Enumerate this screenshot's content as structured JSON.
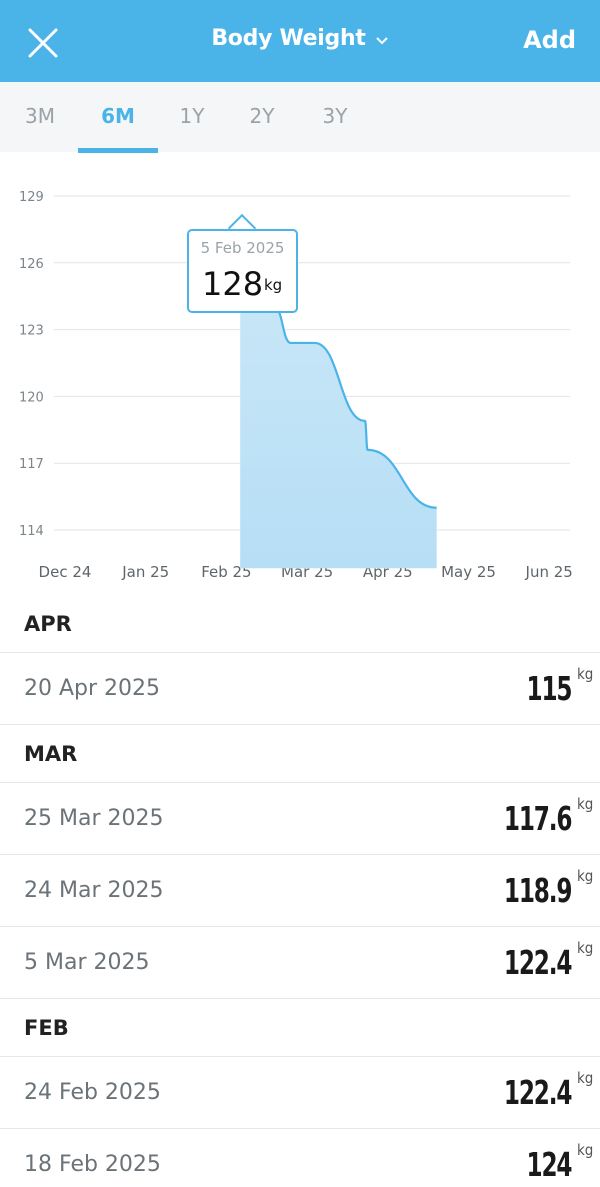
{
  "header": {
    "title": "Body Weight",
    "add_label": "Add",
    "background": "#4ab4e8"
  },
  "tabs": [
    {
      "label": "3M",
      "active": false
    },
    {
      "label": "6M",
      "active": true
    },
    {
      "label": "1Y",
      "active": false
    },
    {
      "label": "2Y",
      "active": false
    },
    {
      "label": "3Y",
      "active": false
    }
  ],
  "tooltip": {
    "date": "5 Feb 2025",
    "value": "128",
    "unit": "kg"
  },
  "chart_data": {
    "type": "area",
    "x_ticks": [
      "Dec 24",
      "Jan 25",
      "Feb 25",
      "Mar 25",
      "Apr 25",
      "May 25",
      "Jun 25"
    ],
    "y_ticks": [
      "129",
      "126",
      "123",
      "120",
      "117",
      "114"
    ],
    "ylim": [
      113,
      129
    ],
    "grid": true,
    "color": "#4ab4e8",
    "series": [
      {
        "points": [
          {
            "x": "2025-02-05",
            "y": 128
          },
          {
            "x": "2025-02-06",
            "y": 127.4
          },
          {
            "x": "2025-02-09",
            "y": 125.5
          },
          {
            "x": "2025-02-18",
            "y": 124
          },
          {
            "x": "2025-02-24",
            "y": 122.4
          },
          {
            "x": "2025-03-05",
            "y": 122.4
          },
          {
            "x": "2025-03-24",
            "y": 118.9
          },
          {
            "x": "2025-03-25",
            "y": 117.6
          },
          {
            "x": "2025-04-20",
            "y": 115
          }
        ]
      }
    ]
  },
  "list": [
    {
      "month": "APR",
      "entries": [
        {
          "date": "20 Apr 2025",
          "value": "115",
          "unit": "kg"
        }
      ]
    },
    {
      "month": "MAR",
      "entries": [
        {
          "date": "25 Mar 2025",
          "value": "117.6",
          "unit": "kg"
        },
        {
          "date": "24 Mar 2025",
          "value": "118.9",
          "unit": "kg"
        },
        {
          "date": "5 Mar 2025",
          "value": "122.4",
          "unit": "kg"
        }
      ]
    },
    {
      "month": "FEB",
      "entries": [
        {
          "date": "24 Feb 2025",
          "value": "122.4",
          "unit": "kg"
        },
        {
          "date": "18 Feb 2025",
          "value": "124",
          "unit": "kg"
        }
      ]
    }
  ]
}
